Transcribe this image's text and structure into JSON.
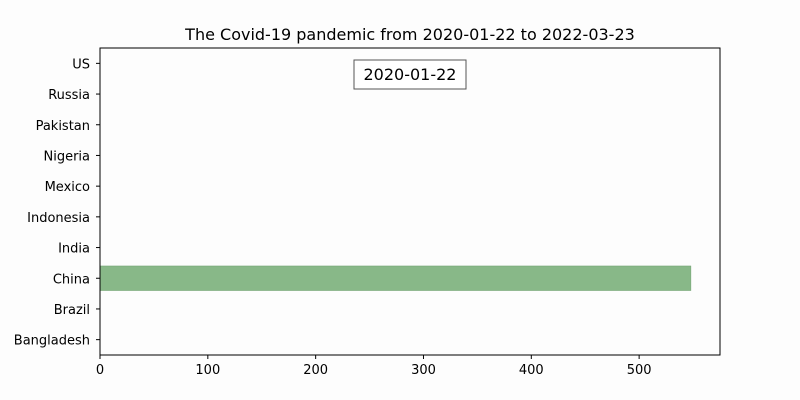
{
  "chart_data": {
    "type": "bar",
    "orientation": "horizontal",
    "title": "The Covid-19 pandemic from 2020-01-22 to 2022-03-23",
    "date_label": "2020-01-22",
    "categories": [
      "Bangladesh",
      "Brazil",
      "China",
      "India",
      "Indonesia",
      "Mexico",
      "Nigeria",
      "Pakistan",
      "Russia",
      "US"
    ],
    "values": [
      0,
      0,
      548,
      0,
      0,
      0,
      0,
      0,
      0,
      0
    ],
    "xlim": [
      0,
      575
    ],
    "xticks": [
      0,
      100,
      200,
      300,
      400,
      500
    ],
    "bar_color": "#88b888",
    "bar_edge_color": "#6f9f6f",
    "xlabel": "",
    "ylabel": "",
    "grid": false
  }
}
